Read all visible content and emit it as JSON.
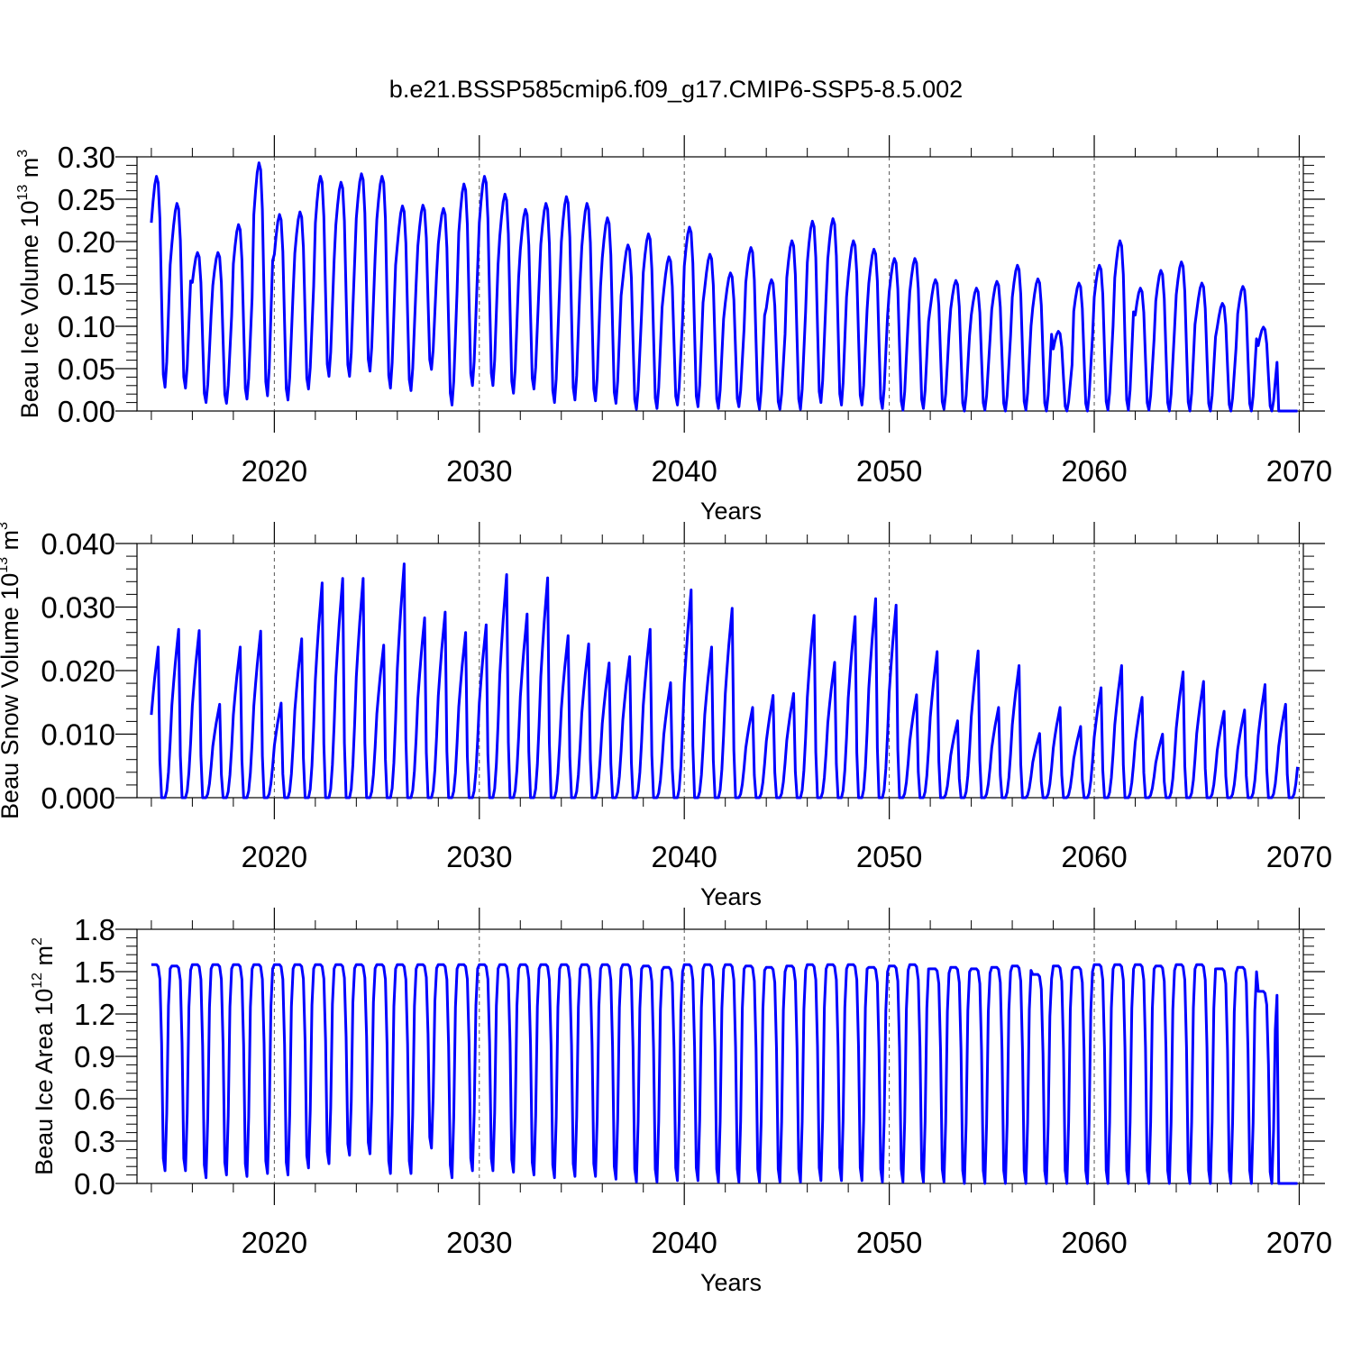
{
  "title": "b.e21.BSSP585cmip6.f09_g17.CMIP6-SSP5-8.5.002",
  "chart_data": [
    {
      "type": "line",
      "name": "ice-volume",
      "ylabel": "Beau Ice Volume 10",
      "ylabel_exp": "13",
      "ylabel_unit": " m",
      "ylabel_unit_exp": "3",
      "xlabel": "Years",
      "xlim": [
        2013.3,
        2070.2
      ],
      "ylim": [
        0.0,
        0.3
      ],
      "yticks": [
        0.0,
        0.05,
        0.1,
        0.15,
        0.2,
        0.25,
        0.3
      ],
      "ytick_labels": [
        "0.00",
        "0.05",
        "0.10",
        "0.15",
        "0.20",
        "0.25",
        "0.30"
      ],
      "xticks": [
        2020,
        2030,
        2040,
        2050,
        2060,
        2070
      ],
      "xtick_labels": [
        "2020",
        "2030",
        "2040",
        "2050",
        "2060",
        "2070"
      ],
      "line_color": "#0000ff",
      "start_year": 2014,
      "seasonal_peaks": [
        0.277,
        0.245,
        0.187,
        0.187,
        0.22,
        0.293,
        0.232,
        0.235,
        0.277,
        0.27,
        0.28,
        0.277,
        0.242,
        0.243,
        0.239,
        0.268,
        0.277,
        0.256,
        0.238,
        0.245,
        0.253,
        0.245,
        0.228,
        0.196,
        0.209,
        0.182,
        0.217,
        0.185,
        0.163,
        0.193,
        0.155,
        0.201,
        0.224,
        0.227,
        0.201,
        0.191,
        0.18,
        0.18,
        0.155,
        0.154,
        0.145,
        0.153,
        0.172,
        0.156,
        0.094,
        0.151,
        0.172,
        0.201,
        0.145,
        0.166,
        0.176,
        0.151,
        0.127,
        0.147,
        0.099,
        0.0
      ],
      "seasonal_troughs": [
        0.028,
        0.027,
        0.01,
        0.009,
        0.014,
        0.018,
        0.013,
        0.026,
        0.041,
        0.041,
        0.047,
        0.027,
        0.024,
        0.049,
        0.007,
        0.03,
        0.03,
        0.021,
        0.026,
        0.01,
        0.013,
        0.012,
        0.009,
        0.002,
        0.003,
        0.007,
        0.005,
        0.003,
        0.005,
        0.002,
        0.002,
        0.002,
        0.01,
        0.007,
        0.007,
        0.003,
        0.001,
        0.003,
        0.002,
        0.0,
        0.001,
        0.0,
        0.001,
        0.0,
        0.0,
        0.0,
        0.001,
        0.001,
        0.001,
        0.0,
        0.0,
        0.0,
        0.0,
        0.0,
        0.0,
        0.0
      ]
    },
    {
      "type": "line",
      "name": "snow-volume",
      "ylabel": "Beau Snow Volume 10",
      "ylabel_exp": "13",
      "ylabel_unit": " m",
      "ylabel_unit_exp": "3",
      "xlabel": "Years",
      "xlim": [
        2013.3,
        2070.2
      ],
      "ylim": [
        0.0,
        0.04
      ],
      "yticks": [
        0.0,
        0.01,
        0.02,
        0.03,
        0.04
      ],
      "ytick_labels": [
        "0.000",
        "0.010",
        "0.020",
        "0.030",
        "0.040"
      ],
      "xticks": [
        2020,
        2030,
        2040,
        2050,
        2060,
        2070
      ],
      "xtick_labels": [
        "2020",
        "2030",
        "2040",
        "2050",
        "2060",
        "2070"
      ],
      "line_color": "#0000ff",
      "start_year": 2014,
      "seasonal_peaks": [
        0.0237,
        0.0265,
        0.0263,
        0.0147,
        0.0237,
        0.0262,
        0.0149,
        0.025,
        0.0338,
        0.0345,
        0.0345,
        0.024,
        0.0368,
        0.0283,
        0.0292,
        0.026,
        0.0272,
        0.0351,
        0.0289,
        0.0346,
        0.0255,
        0.0242,
        0.0212,
        0.0222,
        0.0265,
        0.0181,
        0.0327,
        0.0237,
        0.0298,
        0.0142,
        0.0161,
        0.0164,
        0.0287,
        0.0213,
        0.0285,
        0.0313,
        0.0303,
        0.0162,
        0.023,
        0.0121,
        0.0231,
        0.0142,
        0.0208,
        0.0101,
        0.0142,
        0.0112,
        0.0173,
        0.0208,
        0.0158,
        0.01,
        0.0198,
        0.0183,
        0.0136,
        0.0138,
        0.0178,
        0.0147
      ]
    },
    {
      "type": "line",
      "name": "ice-area",
      "ylabel": "Beau Ice Area 10",
      "ylabel_exp": "12",
      "ylabel_unit": " m",
      "ylabel_unit_exp": "2",
      "xlabel": "Years",
      "xlim": [
        2013.3,
        2070.2
      ],
      "ylim": [
        0.0,
        1.8
      ],
      "yticks": [
        0.0,
        0.3,
        0.6,
        0.9,
        1.2,
        1.5,
        1.8
      ],
      "ytick_labels": [
        "0.0",
        "0.3",
        "0.6",
        "0.9",
        "1.2",
        "1.5",
        "1.8"
      ],
      "xticks": [
        2020,
        2030,
        2040,
        2050,
        2060,
        2070
      ],
      "xtick_labels": [
        "2020",
        "2030",
        "2040",
        "2050",
        "2060",
        "2070"
      ],
      "line_color": "#0000ff",
      "start_year": 2014,
      "seasonal_peaks": [
        1.55,
        1.54,
        1.55,
        1.55,
        1.55,
        1.55,
        1.55,
        1.55,
        1.55,
        1.55,
        1.55,
        1.55,
        1.55,
        1.55,
        1.55,
        1.55,
        1.55,
        1.55,
        1.55,
        1.55,
        1.55,
        1.55,
        1.55,
        1.55,
        1.54,
        1.53,
        1.55,
        1.55,
        1.55,
        1.54,
        1.53,
        1.54,
        1.55,
        1.55,
        1.55,
        1.53,
        1.54,
        1.55,
        1.52,
        1.53,
        1.52,
        1.53,
        1.54,
        1.48,
        1.54,
        1.53,
        1.55,
        1.55,
        1.55,
        1.54,
        1.55,
        1.55,
        1.52,
        1.53,
        1.36,
        0.0
      ],
      "seasonal_troughs": [
        0.09,
        0.09,
        0.04,
        0.06,
        0.05,
        0.07,
        0.06,
        0.11,
        0.14,
        0.2,
        0.21,
        0.07,
        0.07,
        0.25,
        0.04,
        0.09,
        0.09,
        0.08,
        0.06,
        0.04,
        0.05,
        0.05,
        0.03,
        0.01,
        0.01,
        0.02,
        0.02,
        0.01,
        0.01,
        0.01,
        0.01,
        0.01,
        0.02,
        0.02,
        0.02,
        0.01,
        0.01,
        0.01,
        0.01,
        0.0,
        0.0,
        0.0,
        0.0,
        0.0,
        0.0,
        0.0,
        0.0,
        0.0,
        0.0,
        0.0,
        0.0,
        0.0,
        0.0,
        0.0,
        0.0,
        0.0
      ]
    }
  ]
}
